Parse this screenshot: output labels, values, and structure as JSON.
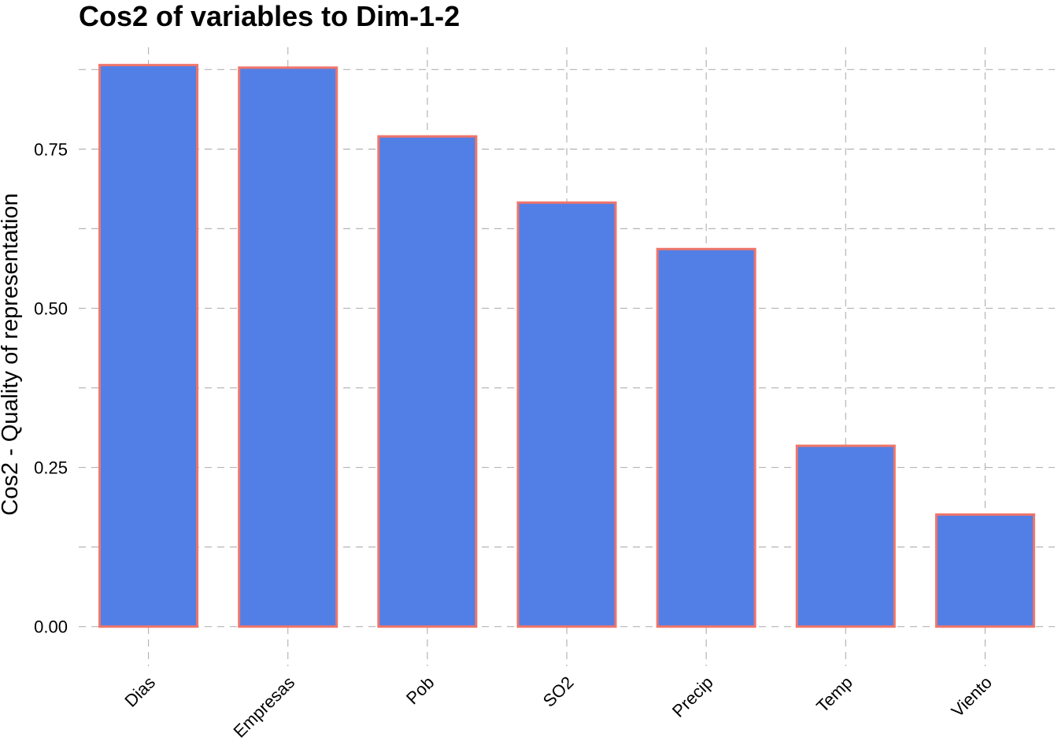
{
  "chart_data": {
    "type": "bar",
    "title": "Cos2 of variables to Dim-1-2",
    "xlabel": "",
    "ylabel": "Cos2 - Quality of representation",
    "categories": [
      "Dias",
      "Empresas",
      "Pob",
      "SO2",
      "Precip",
      "Temp",
      "Viento"
    ],
    "values": [
      0.882,
      0.878,
      0.77,
      0.666,
      0.593,
      0.284,
      0.176
    ],
    "ylim": [
      -0.04,
      0.91
    ],
    "yticks": [
      0.0,
      0.25,
      0.5,
      0.75
    ],
    "ytick_labels": [
      "0.00",
      "0.25",
      "0.50",
      "0.75"
    ],
    "grid": true,
    "legend": "none",
    "colors": {
      "bar_fill": "#527fe6",
      "bar_stroke": "#f0756a",
      "grid": "#b5b5b5"
    }
  }
}
